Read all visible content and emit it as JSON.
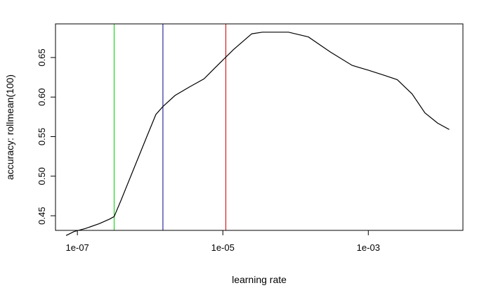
{
  "chart_data": {
    "type": "line",
    "xscale": "log10",
    "xlabel": "learning rate",
    "ylabel": "accuracy: rollmean(100)",
    "xlim": [
      5e-08,
      0.02
    ],
    "ylim": [
      0.4315,
      0.6925
    ],
    "xticks": [
      {
        "value": 1e-07,
        "label": "1e-07"
      },
      {
        "value": 1e-05,
        "label": "1e-05"
      },
      {
        "value": 0.001,
        "label": "1e-03"
      }
    ],
    "yticks": [
      {
        "value": 0.45,
        "label": "0.45"
      },
      {
        "value": 0.5,
        "label": "0.50"
      },
      {
        "value": 0.55,
        "label": "0.55"
      },
      {
        "value": 0.6,
        "label": "0.60"
      },
      {
        "value": 0.65,
        "label": "0.65"
      }
    ],
    "series": [
      {
        "color": "#000000",
        "x": [
          7e-08,
          9e-08,
          1.3e-07,
          2e-07,
          2.8e-07,
          3.2e-07,
          4e-07,
          6e-07,
          9e-07,
          1.2e-06,
          1.5e-06,
          2.2e-06,
          3.5e-06,
          5.5e-06,
          8e-06,
          1.4e-05,
          2.5e-05,
          3.5e-05,
          5e-05,
          8e-05,
          0.00015,
          0.0003,
          0.0006,
          0.001,
          0.0016,
          0.0025,
          0.004,
          0.006,
          0.009,
          0.013
        ],
        "y": [
          0.425,
          0.43,
          0.434,
          0.44,
          0.446,
          0.449,
          0.47,
          0.51,
          0.55,
          0.578,
          0.588,
          0.602,
          0.613,
          0.623,
          0.638,
          0.66,
          0.68,
          0.682,
          0.682,
          0.682,
          0.676,
          0.657,
          0.64,
          0.634,
          0.628,
          0.622,
          0.604,
          0.58,
          0.567,
          0.559
        ]
      }
    ],
    "vlines": [
      {
        "x": 3.2e-07,
        "color": "#00cc00"
      },
      {
        "x": 1.5e-06,
        "color": "#00008b"
      },
      {
        "x": 1.1e-05,
        "color": "#cc0000"
      }
    ],
    "grid": false,
    "legend": "none"
  }
}
